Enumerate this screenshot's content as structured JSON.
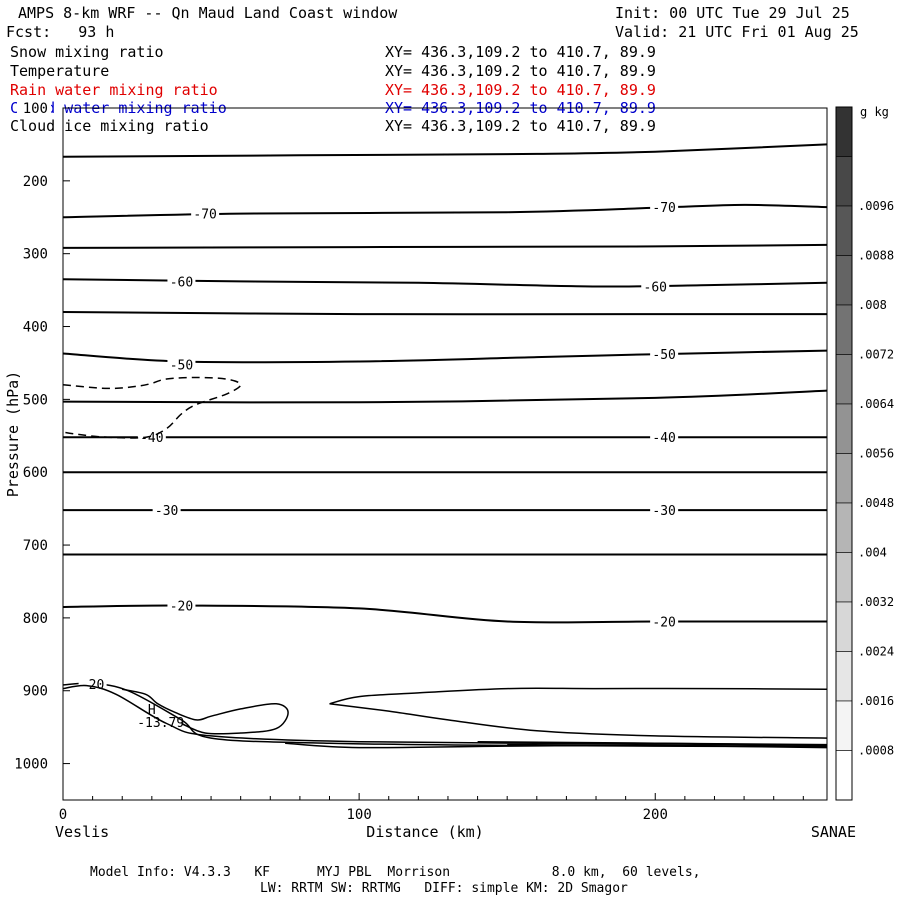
{
  "header": {
    "title": "AMPS 8-km WRF -- Qn Maud Land Coast window",
    "init": "Init: 00 UTC Tue 29 Jul 25",
    "fcst": "Fcst:   93 h",
    "valid": "Valid: 21 UTC Fri 01 Aug 25"
  },
  "fields": [
    {
      "name": "Snow mixing ratio",
      "xy": "XY= 436.3,109.2 to 410.7, 89.9",
      "color": "#000000"
    },
    {
      "name": "Temperature",
      "xy": "XY= 436.3,109.2 to 410.7, 89.9",
      "color": "#000000"
    },
    {
      "name": "Rain water mixing ratio",
      "xy": "XY= 436.3,109.2 to 410.7, 89.9",
      "color": "#e00000"
    },
    {
      "name": "Cloud water mixing ratio",
      "xy": "XY= 436.3,109.2 to 410.7, 89.9",
      "color": "#0000cc"
    },
    {
      "name": "Cloud ice mixing ratio",
      "xy": "XY= 436.3,109.2 to 410.7, 89.9",
      "color": "#000000"
    }
  ],
  "footer": {
    "line1": "Model Info: V4.3.3   KF      MYJ PBL  Morrison             8.0 km,  60 levels,",
    "line2": "LW: RRTM SW: RRTMG   DIFF: simple KM: 2D Smagor"
  },
  "chart_data": {
    "type": "contour",
    "xlabel": "Distance (km)",
    "ylabel": "Pressure (hPa)",
    "xlim": [
      0,
      258
    ],
    "ylim": [
      100,
      1050
    ],
    "y_inverted": true,
    "x_ticks": [
      0,
      100,
      200
    ],
    "y_ticks": [
      100,
      200,
      300,
      400,
      500,
      600,
      700,
      800,
      900,
      1000
    ],
    "x_end_labels": {
      "left": "Veslis",
      "right": "SANAE"
    },
    "colorbar": {
      "unit": "g kg",
      "unit_exp": "-1",
      "ticks": [
        ".0096",
        ".0088",
        ".008",
        ".0072",
        ".0064",
        ".0056",
        ".0048",
        ".004",
        ".0032",
        ".0024",
        ".0016",
        ".0008"
      ],
      "colors": [
        "#333333",
        "#484848",
        "#575757",
        "#646464",
        "#737373",
        "#828282",
        "#939393",
        "#a4a4a4",
        "#b5b5b5",
        "#c6c6c6",
        "#d7d7d7",
        "#e6e6e6",
        "#f4f4f4",
        "#ffffff"
      ]
    },
    "temperature_isotherms": [
      {
        "points": [
          [
            0,
            167
          ],
          [
            80,
            165
          ],
          [
            160,
            163
          ],
          [
            200,
            160
          ],
          [
            258,
            150
          ]
        ]
      },
      {
        "label": "-70",
        "label_pos": [
          [
            48,
            245
          ],
          [
            203,
            236
          ]
        ],
        "points": [
          [
            0,
            250
          ],
          [
            60,
            245
          ],
          [
            150,
            243
          ],
          [
            200,
            237
          ],
          [
            230,
            233
          ],
          [
            258,
            236
          ]
        ]
      },
      {
        "points": [
          [
            0,
            292
          ],
          [
            100,
            291
          ],
          [
            200,
            290
          ],
          [
            258,
            288
          ]
        ]
      },
      {
        "label": "-60",
        "label_pos": [
          [
            40,
            338
          ],
          [
            200,
            345
          ]
        ],
        "points": [
          [
            0,
            335
          ],
          [
            60,
            338
          ],
          [
            120,
            340
          ],
          [
            180,
            345
          ],
          [
            220,
            343
          ],
          [
            258,
            340
          ]
        ]
      },
      {
        "points": [
          [
            0,
            380
          ],
          [
            100,
            383
          ],
          [
            200,
            383
          ],
          [
            258,
            383
          ]
        ]
      },
      {
        "label": "-50",
        "label_pos": [
          [
            40,
            452
          ],
          [
            203,
            438
          ]
        ],
        "points": [
          [
            0,
            437
          ],
          [
            40,
            448
          ],
          [
            100,
            448
          ],
          [
            160,
            442
          ],
          [
            200,
            438
          ],
          [
            258,
            433
          ]
        ]
      },
      {
        "points": [
          [
            0,
            503
          ],
          [
            100,
            504
          ],
          [
            200,
            498
          ],
          [
            258,
            488
          ]
        ]
      },
      {
        "label": "-40",
        "label_pos": [
          [
            30,
            552
          ],
          [
            203,
            552
          ]
        ],
        "points": [
          [
            0,
            552
          ],
          [
            100,
            552
          ],
          [
            200,
            552
          ],
          [
            258,
            552
          ]
        ]
      },
      {
        "points": [
          [
            0,
            600
          ],
          [
            100,
            600
          ],
          [
            200,
            600
          ],
          [
            258,
            600
          ]
        ]
      },
      {
        "label": "-30",
        "label_pos": [
          [
            35,
            652
          ],
          [
            203,
            652
          ]
        ],
        "points": [
          [
            0,
            652
          ],
          [
            100,
            652
          ],
          [
            200,
            652
          ],
          [
            258,
            652
          ]
        ]
      },
      {
        "points": [
          [
            0,
            713
          ],
          [
            100,
            713
          ],
          [
            200,
            713
          ],
          [
            258,
            713
          ]
        ]
      },
      {
        "label": "-20",
        "label_pos": [
          [
            40,
            783
          ],
          [
            203,
            805
          ]
        ],
        "points": [
          [
            0,
            785
          ],
          [
            40,
            783
          ],
          [
            100,
            787
          ],
          [
            150,
            805
          ],
          [
            200,
            805
          ],
          [
            258,
            805
          ]
        ]
      }
    ],
    "boundary_layer_contours": [
      {
        "label": "-20",
        "label_pos": [
          [
            10,
            892
          ]
        ],
        "points": [
          [
            0,
            892
          ],
          [
            10,
            890
          ],
          [
            22,
            900
          ],
          [
            40,
            940
          ],
          [
            50,
            965
          ],
          [
            90,
            972
          ],
          [
            150,
            975
          ],
          [
            258,
            977
          ]
        ]
      },
      {
        "points": [
          [
            0,
            897
          ],
          [
            8,
            893
          ],
          [
            18,
            905
          ],
          [
            35,
            945
          ],
          [
            50,
            962
          ],
          [
            100,
            970
          ],
          [
            200,
            973
          ],
          [
            258,
            975
          ]
        ]
      },
      {
        "points": [
          [
            90,
            918
          ],
          [
            100,
            908
          ],
          [
            120,
            903
          ],
          [
            150,
            897
          ],
          [
            180,
            897
          ],
          [
            220,
            897
          ],
          [
            258,
            898
          ]
        ]
      },
      {
        "points": [
          [
            90,
            918
          ],
          [
            110,
            928
          ],
          [
            130,
            940
          ],
          [
            160,
            955
          ],
          [
            200,
            962
          ],
          [
            258,
            965
          ]
        ]
      },
      {
        "points": [
          [
            20,
            898
          ],
          [
            28,
            905
          ],
          [
            32,
            918
          ],
          [
            38,
            930
          ],
          [
            45,
            940
          ],
          [
            50,
            935
          ],
          [
            60,
            925
          ],
          [
            72,
            918
          ],
          [
            76,
            930
          ],
          [
            72,
            952
          ],
          [
            60,
            958
          ],
          [
            48,
            958
          ],
          [
            40,
            945
          ]
        ]
      },
      {
        "points": [
          [
            75,
            972
          ],
          [
            100,
            978
          ],
          [
            150,
            976
          ],
          [
            200,
            975
          ],
          [
            258,
            977
          ]
        ]
      },
      {
        "points": [
          [
            140,
            970
          ],
          [
            200,
            972
          ],
          [
            258,
            974
          ]
        ]
      },
      {
        "points": [
          [
            150,
            974
          ],
          [
            200,
            975
          ],
          [
            258,
            978
          ]
        ]
      },
      {
        "points": [
          [
            200,
            972
          ],
          [
            258,
            975
          ]
        ]
      }
    ],
    "dashed_contour": {
      "points": [
        [
          0,
          480
        ],
        [
          15,
          485
        ],
        [
          25,
          482
        ],
        [
          30,
          478
        ],
        [
          35,
          472
        ],
        [
          45,
          470
        ],
        [
          55,
          472
        ],
        [
          60,
          480
        ],
        [
          55,
          493
        ],
        [
          45,
          507
        ],
        [
          40,
          520
        ],
        [
          35,
          540
        ],
        [
          28,
          552
        ],
        [
          15,
          552
        ],
        [
          5,
          548
        ],
        [
          0,
          545
        ]
      ]
    },
    "annotations": [
      {
        "text": "H",
        "x": 30,
        "y": 925
      },
      {
        "text": "-13.79",
        "x": 33,
        "y": 943
      }
    ]
  }
}
